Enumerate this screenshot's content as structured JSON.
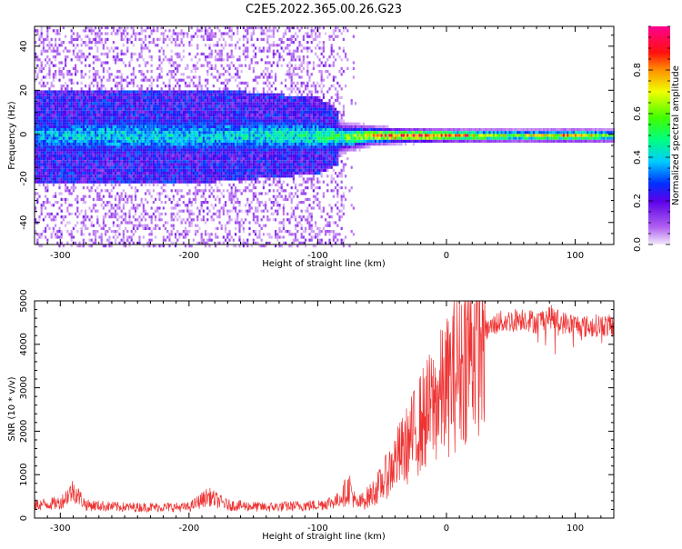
{
  "page": {
    "title": "C2E5.2022.365.00.26.G23"
  },
  "chart_data": [
    {
      "type": "heatmap",
      "title": "C2E5.2022.365.00.26.G23",
      "xlabel": "Height of straight line (km)",
      "ylabel": "Frequency (Hz)",
      "xlim": [
        -320,
        130
      ],
      "ylim": [
        -50,
        49
      ],
      "xticks": [
        -300,
        -200,
        -100,
        0,
        100
      ],
      "yticks": [
        -40,
        -20,
        0,
        20,
        40
      ],
      "colorbar": {
        "label": "Normalized spectral amplitude",
        "range": [
          0.0,
          1.0
        ],
        "ticks": [
          0.0,
          0.2,
          0.4,
          0.6,
          0.8
        ]
      },
      "ridge": [
        {
          "x": -320,
          "freq": 0,
          "peak": 0.35,
          "halfwidth_hz": 6
        },
        {
          "x": -250,
          "freq": 0,
          "peak": 0.4,
          "halfwidth_hz": 6
        },
        {
          "x": -180,
          "freq": 0,
          "peak": 0.38,
          "halfwidth_hz": 6
        },
        {
          "x": -100,
          "freq": 0,
          "peak": 0.45,
          "halfwidth_hz": 5
        },
        {
          "x": -80,
          "freq": -1,
          "peak": 0.55,
          "halfwidth_hz": 3
        },
        {
          "x": -60,
          "freq": 0,
          "peak": 0.7,
          "halfwidth_hz": 2
        },
        {
          "x": -40,
          "freq": 0,
          "peak": 0.9,
          "halfwidth_hz": 1.5
        },
        {
          "x": 0,
          "freq": 0,
          "peak": 0.85,
          "halfwidth_hz": 1.3
        },
        {
          "x": 50,
          "freq": 0,
          "peak": 0.6,
          "halfwidth_hz": 1.3
        },
        {
          "x": 100,
          "freq": 0,
          "peak": 0.75,
          "halfwidth_hz": 1.3
        },
        {
          "x": 130,
          "freq": 0,
          "peak": 0.55,
          "halfwidth_hz": 1.3
        }
      ]
    },
    {
      "type": "line",
      "xlabel": "Height of straight line (km)",
      "ylabel": "SNR (10 * v/v)",
      "xlim": [
        -320,
        130
      ],
      "ylim": [
        0,
        5000
      ],
      "xticks": [
        -300,
        -200,
        -100,
        0,
        100
      ],
      "yticks": [
        0,
        1000,
        2000,
        3000,
        4000,
        5000
      ],
      "color": "#ee3333",
      "series": [
        {
          "x": [
            -320,
            -300,
            -290,
            -280,
            -250,
            -200,
            -185,
            -170,
            -140,
            -100,
            -85,
            -75,
            -70,
            -60,
            -50,
            -40,
            -30,
            -20,
            -10,
            0,
            10,
            20,
            30,
            40,
            50,
            60,
            70,
            80,
            90,
            100,
            110,
            120,
            130
          ],
          "values": [
            300,
            350,
            650,
            300,
            250,
            250,
            500,
            300,
            250,
            300,
            400,
            700,
            300,
            500,
            800,
            1300,
            1700,
            2200,
            2600,
            3000,
            3500,
            4000,
            4300,
            4500,
            4550,
            4600,
            4500,
            4650,
            4500,
            4450,
            4400,
            4450,
            4400
          ]
        }
      ]
    }
  ]
}
